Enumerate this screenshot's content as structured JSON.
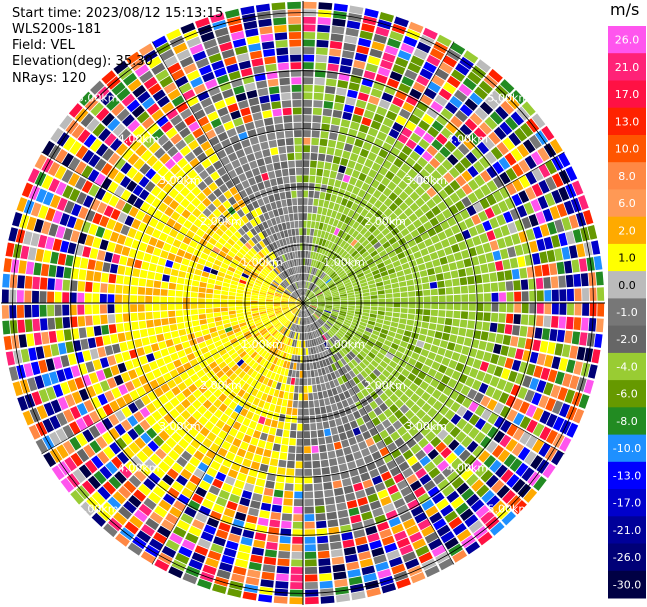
{
  "info": {
    "start_time": "Start time: 2023/08/12 15:13:15",
    "site": "WLS200s-181",
    "field": "Field: VEL",
    "elevation": "Elevation(deg): 35.30",
    "nrays": "NRays: 120"
  },
  "colorbar": {
    "unit": "m/s",
    "ticks": [
      "26.0",
      "21.0",
      "17.0",
      "13.0",
      "10.0",
      "8.0",
      "6.0",
      "2.0",
      "1.0",
      "0.0",
      "-1.0",
      "-2.0",
      "-4.0",
      "-6.0",
      "-8.0",
      "-10.0",
      "-13.0",
      "-17.0",
      "-21.0",
      "-26.0",
      "-30.0"
    ],
    "colors": [
      "#ff55ee",
      "#ff2277",
      "#ff1144",
      "#ff2200",
      "#ff5500",
      "#ff8844",
      "#ff9955",
      "#ffaa00",
      "#ffff00",
      "#bbbbbb",
      "#777777",
      "#666666",
      "#99cc33",
      "#669900",
      "#228b22",
      "#1e90ff",
      "#0000ff",
      "#0000cc",
      "#000099",
      "#000077",
      "#000044"
    ]
  },
  "chart_data": {
    "type": "heatmap",
    "projection": "polar (PPI)",
    "field": "VEL",
    "unit": "m/s",
    "rays": 120,
    "vmin": -30.0,
    "vmax": 26.0,
    "range_rings_km": [
      1.0,
      2.0,
      3.0,
      4.0,
      5.0
    ],
    "ring_labels": [
      "1.00km",
      "2.00km",
      "3.00km",
      "4.00km",
      "5.00km"
    ],
    "spokes_every_deg": 30,
    "max_range_km": 5.2,
    "coherent_range_km": 3.2,
    "pattern": "near-field yellow (positive ~1-2 m/s) to west, green (negative ~-2 m/s) to east/south-east, gray near 0; far range noisy multicolor"
  }
}
